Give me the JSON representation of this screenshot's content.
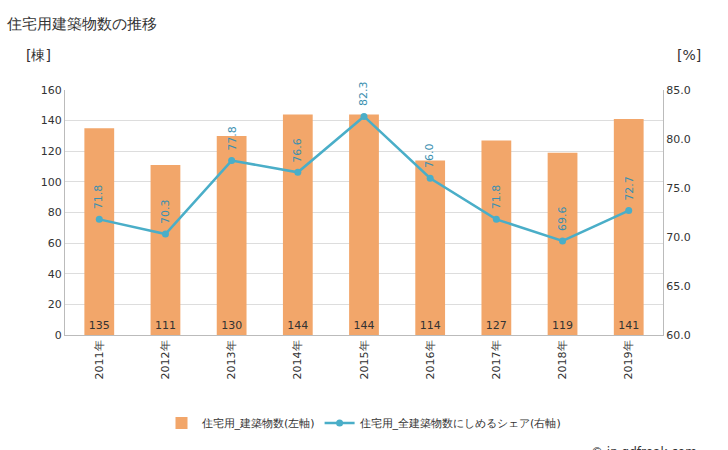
{
  "chart_data": {
    "type": "bar",
    "title": "住宅用建築物数の推移",
    "y_label": "[棟]",
    "y2_label": "[%]",
    "categories": [
      "2011年",
      "2012年",
      "2013年",
      "2014年",
      "2015年",
      "2016年",
      "2017年",
      "2018年",
      "2019年"
    ],
    "series": [
      {
        "name": "住宅用_建築物数(左軸)",
        "type": "bar",
        "color": "#f2a66a",
        "values": [
          135,
          111,
          130,
          144,
          144,
          114,
          127,
          119,
          141
        ],
        "data_labels": true
      },
      {
        "name": "住宅用_全建築物数にしめるシェア(右軸)",
        "type": "line",
        "axis": "y2",
        "color": "#4aaec8",
        "marker": "circle",
        "values": [
          71.8,
          70.3,
          77.8,
          76.6,
          82.3,
          76.0,
          71.8,
          69.6,
          72.7
        ],
        "value_labels": [
          "71.8",
          "70.3",
          "77.8",
          "76.6",
          "82.3",
          "76.0",
          "71.8",
          "69.6",
          "72.7"
        ],
        "data_labels": true
      }
    ],
    "ylim": [
      0,
      160
    ],
    "yticks": [
      0,
      20,
      40,
      60,
      80,
      100,
      120,
      140,
      160
    ],
    "y2lim": [
      60,
      85
    ],
    "y2ticks": [
      {
        "value": 60,
        "label": "60.0"
      },
      {
        "value": 65,
        "label": "65.0"
      },
      {
        "value": 70,
        "label": "70.0"
      },
      {
        "value": 75,
        "label": "75.0"
      },
      {
        "value": 80,
        "label": "80.0"
      },
      {
        "value": 85,
        "label": "85.0"
      }
    ],
    "grid": true,
    "legend": "bottom",
    "source": "© jp.gdfreak.com"
  }
}
